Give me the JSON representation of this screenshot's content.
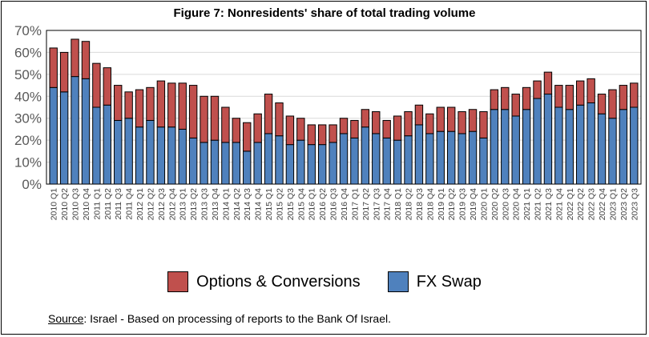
{
  "chart_data": {
    "type": "bar",
    "stacked": true,
    "title": "Figure 7: Nonresidents' share of total trading volume",
    "xlabel": "",
    "ylabel": "",
    "ylim": [
      0,
      0.7
    ],
    "yticks": [
      "0%",
      "10%",
      "20%",
      "30%",
      "40%",
      "50%",
      "60%",
      "70%"
    ],
    "grid": true,
    "legend_position": "bottom",
    "categories": [
      "2010 Q1",
      "2010 Q2",
      "2010 Q3",
      "2010 Q4",
      "2011 Q1",
      "2011 Q2",
      "2011 Q3",
      "2011 Q4",
      "2012 Q1",
      "2012 Q2",
      "2012 Q3",
      "2012 Q4",
      "2013 Q1",
      "2013 Q2",
      "2013 Q3",
      "2013 Q4",
      "2014 Q1",
      "2014 Q2",
      "2014 Q3",
      "2014 Q4",
      "2015 Q1",
      "2015 Q2",
      "2015 Q3",
      "2015 Q4",
      "2016 Q1",
      "2016 Q2",
      "2016 Q3",
      "2016 Q4",
      "2017 Q1",
      "2017 Q2",
      "2017 Q3",
      "2017 Q4",
      "2018 Q1",
      "2018 Q2",
      "2018 Q3",
      "2018 Q4",
      "2019 Q1",
      "2019 Q2",
      "2019 Q3",
      "2019 Q4",
      "2020 Q1",
      "2020 Q2",
      "2020 Q3",
      "2020 Q4",
      "2021 Q1",
      "2021 Q2",
      "2021 Q3",
      "2021 Q4",
      "2022 Q1",
      "2022 Q2",
      "2022 Q3",
      "2022 Q4",
      "2023 Q1",
      "2023 Q2",
      "2023 Q3"
    ],
    "series": [
      {
        "name": "FX Swap",
        "color": "#4f81bd",
        "values": [
          0.44,
          0.42,
          0.49,
          0.48,
          0.35,
          0.36,
          0.29,
          0.3,
          0.26,
          0.29,
          0.26,
          0.26,
          0.25,
          0.21,
          0.19,
          0.2,
          0.19,
          0.19,
          0.15,
          0.19,
          0.23,
          0.22,
          0.18,
          0.2,
          0.18,
          0.18,
          0.19,
          0.23,
          0.21,
          0.26,
          0.23,
          0.21,
          0.2,
          0.22,
          0.27,
          0.23,
          0.24,
          0.24,
          0.23,
          0.24,
          0.21,
          0.34,
          0.34,
          0.31,
          0.34,
          0.39,
          0.41,
          0.35,
          0.34,
          0.36,
          0.37,
          0.32,
          0.3,
          0.34,
          0.35
        ]
      },
      {
        "name": "Options & Conversions",
        "color": "#c0504d",
        "values": [
          0.18,
          0.18,
          0.17,
          0.17,
          0.2,
          0.17,
          0.16,
          0.12,
          0.17,
          0.15,
          0.21,
          0.2,
          0.21,
          0.24,
          0.21,
          0.2,
          0.16,
          0.11,
          0.13,
          0.13,
          0.18,
          0.15,
          0.13,
          0.1,
          0.09,
          0.09,
          0.08,
          0.07,
          0.08,
          0.08,
          0.1,
          0.08,
          0.11,
          0.11,
          0.09,
          0.09,
          0.11,
          0.11,
          0.1,
          0.1,
          0.12,
          0.09,
          0.1,
          0.1,
          0.1,
          0.08,
          0.1,
          0.1,
          0.11,
          0.11,
          0.11,
          0.09,
          0.13,
          0.11,
          0.11
        ]
      }
    ]
  },
  "legend": {
    "items": [
      {
        "label": "Options & Conversions",
        "color": "#c0504d"
      },
      {
        "label": "FX Swap",
        "color": "#4f81bd"
      }
    ]
  },
  "source": {
    "label": "Source",
    "text": ": Israel -  Based on processing of reports to the Bank Of Israel."
  }
}
